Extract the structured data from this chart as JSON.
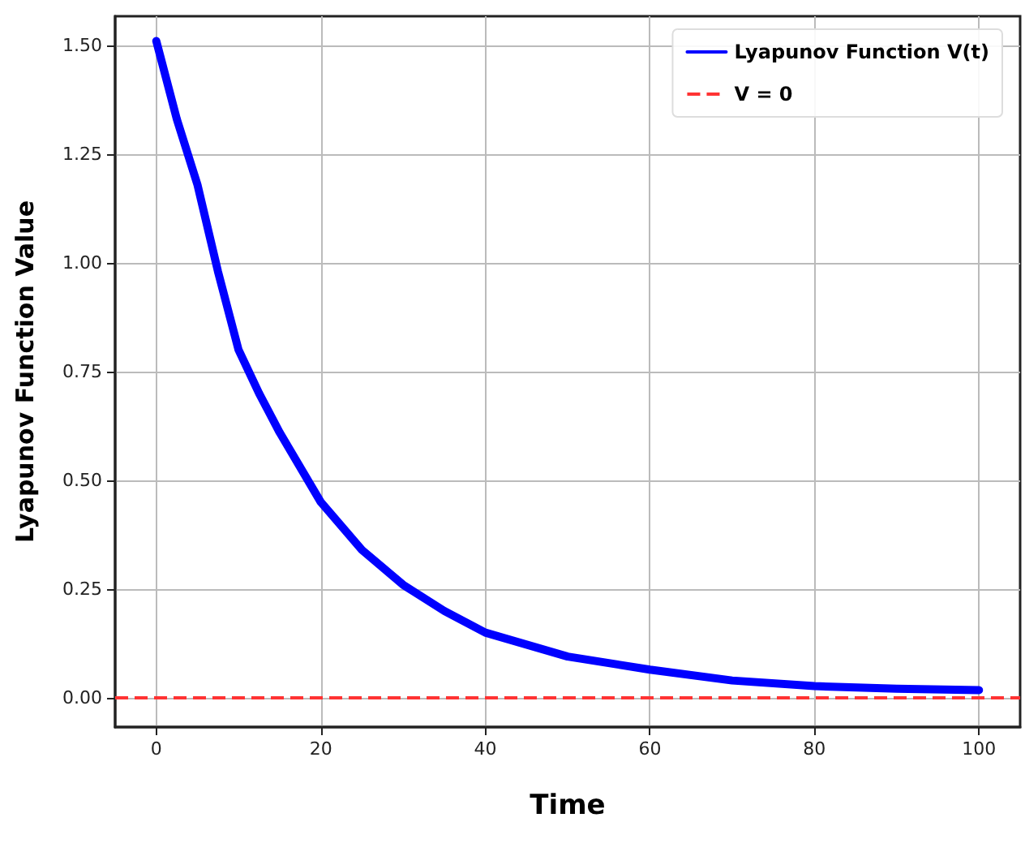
{
  "chart_data": {
    "type": "line",
    "xlabel": "Time",
    "ylabel": "Lyapunov Function Value",
    "x": [
      0,
      2.5,
      5,
      7.5,
      10,
      12.5,
      15,
      20,
      25,
      30,
      35,
      40,
      50,
      60,
      70,
      80,
      90,
      100
    ],
    "series": [
      {
        "name": "Lyapunov Function V(t)",
        "color": "#0000ff",
        "values": [
          1.51,
          1.33,
          1.18,
          0.98,
          0.8,
          0.7,
          0.61,
          0.45,
          0.34,
          0.26,
          0.2,
          0.15,
          0.095,
          0.065,
          0.04,
          0.027,
          0.021,
          0.018
        ]
      }
    ],
    "ref_lines": [
      {
        "axis": "y",
        "value": 0,
        "label": "V = 0",
        "color": "#ff3333",
        "line_style": "dashed"
      }
    ],
    "xlim": [
      -5,
      105
    ],
    "xticks": [
      0,
      20,
      40,
      60,
      80,
      100
    ],
    "ylim": [
      -0.067,
      1.567
    ],
    "yticks": [
      {
        "value": 0,
        "label": "0.00"
      },
      {
        "value": 0.25,
        "label": "0.25"
      },
      {
        "value": 0.5,
        "label": "0.50"
      },
      {
        "value": 0.75,
        "label": "0.75"
      },
      {
        "value": 1,
        "label": "1.00"
      },
      {
        "value": 1.25,
        "label": "1.25"
      },
      {
        "value": 1.5,
        "label": "1.50"
      }
    ],
    "grid": true,
    "legend": "top right",
    "marker": "none",
    "line_style": "solid"
  }
}
